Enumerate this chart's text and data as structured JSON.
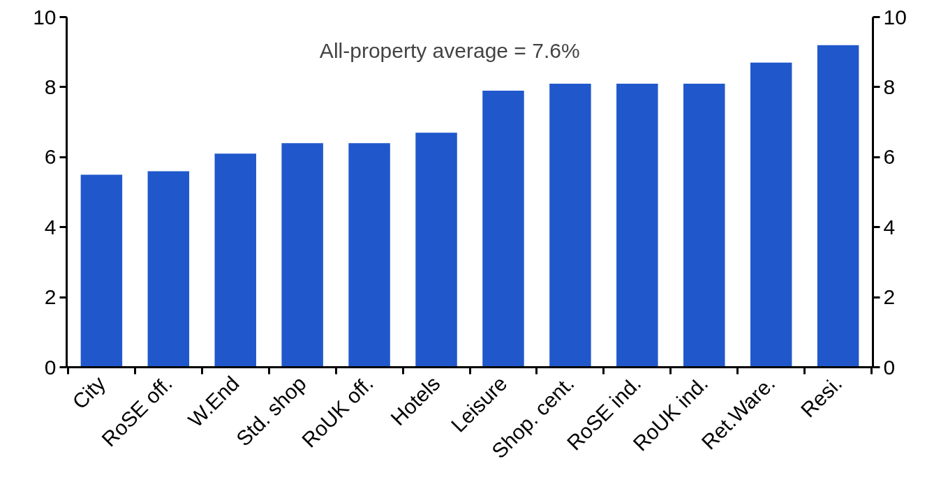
{
  "chart_data": {
    "type": "bar",
    "categories": [
      "City",
      "RoSE off.",
      "W.End",
      "Std. shop",
      "RoUK off.",
      "Hotels",
      "Leisure",
      "Shop. cent.",
      "RoSE ind.",
      "RoUK ind.",
      "Ret.Ware.",
      "Resi."
    ],
    "values": [
      5.5,
      5.6,
      6.1,
      6.4,
      6.4,
      6.7,
      7.9,
      8.1,
      8.1,
      8.1,
      8.7,
      9.2
    ],
    "color": "#2058cc",
    "ylim": [
      0,
      10
    ],
    "yticks": [
      0,
      2,
      4,
      6,
      8,
      10
    ],
    "y2lim": [
      0,
      10
    ],
    "y2ticks": [
      0,
      2,
      4,
      6,
      8,
      10
    ],
    "annotations": [
      "All-property average = 7.6%"
    ],
    "grid": false
  }
}
